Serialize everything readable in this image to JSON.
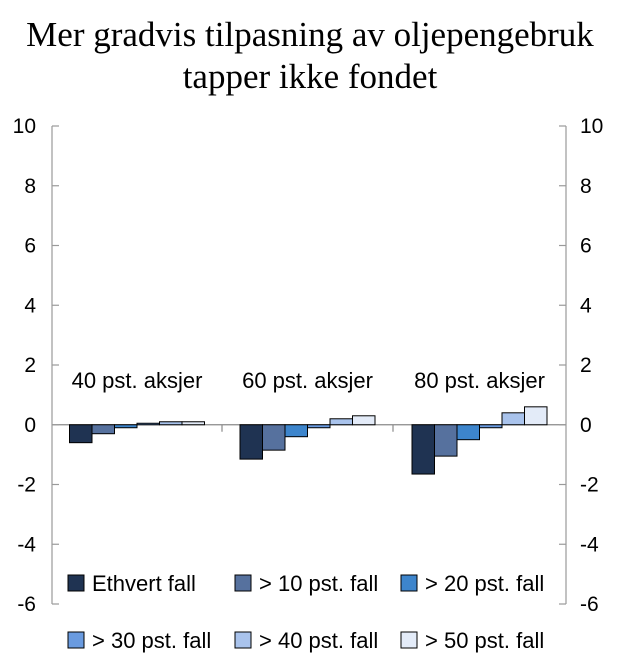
{
  "chart_data": {
    "type": "bar",
    "title_lines": [
      "Mer gradvis tilpasning av oljepengebruk",
      "tapper ikke fondet"
    ],
    "categories": [
      "40 pst. aksjer",
      "60 pst. aksjer",
      "80 pst. aksjer"
    ],
    "series": [
      {
        "name": "Ethvert fall",
        "color": "#1f3352",
        "values": [
          -0.6,
          -1.15,
          -1.65
        ]
      },
      {
        "name": "> 10 pst. fall",
        "color": "#56719e",
        "values": [
          -0.3,
          -0.85,
          -1.05
        ]
      },
      {
        "name": "> 20 pst. fall",
        "color": "#3d85cc",
        "values": [
          -0.1,
          -0.4,
          -0.5
        ]
      },
      {
        "name": "> 30 pst. fall",
        "color": "#6a9be0",
        "values": [
          0.05,
          -0.1,
          -0.1
        ]
      },
      {
        "name": "> 40 pst. fall",
        "color": "#a9c3ec",
        "values": [
          0.1,
          0.2,
          0.4
        ]
      },
      {
        "name": "> 50 pst. fall",
        "color": "#e3ebf8",
        "values": [
          0.1,
          0.3,
          0.6
        ]
      }
    ],
    "ylim": [
      -6,
      10
    ],
    "yticks": [
      "10",
      "8",
      "6",
      "4",
      "2",
      "0",
      "-2",
      "-4",
      "-6"
    ],
    "xlabel": "",
    "ylabel": "",
    "grid": false,
    "legend_position": "bottom",
    "bar_stroke_color": "#000000"
  }
}
